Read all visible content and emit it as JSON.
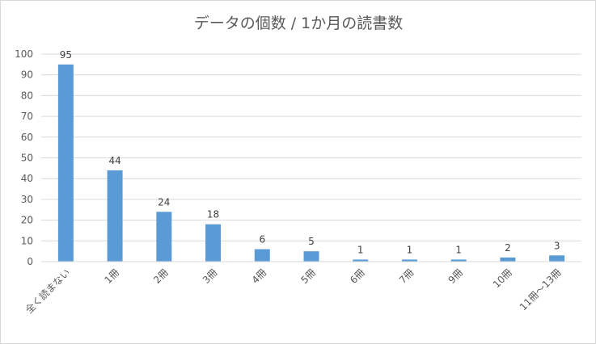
{
  "chart_data": {
    "type": "bar",
    "title": "データの個数 / 1か月の読書数",
    "categories": [
      "全く読まない",
      "1冊",
      "2冊",
      "3冊",
      "4冊",
      "5冊",
      "6冊",
      "7冊",
      "9冊",
      "10冊",
      "11冊～13冊"
    ],
    "series": [
      {
        "values": [
          95,
          44,
          24,
          18,
          6,
          5,
          1,
          1,
          1,
          2,
          3
        ],
        "data_labels": [
          "95",
          "44",
          "24",
          "18",
          "6",
          "5",
          "1",
          "1",
          "1",
          "2",
          "3"
        ]
      }
    ],
    "yticks": [
      "0",
      "10",
      "20",
      "30",
      "40",
      "50",
      "60",
      "70",
      "80",
      "90",
      "100"
    ],
    "ylim": [
      0,
      100
    ],
    "xlabel": "",
    "ylabel": "",
    "grid": true,
    "legend": "none",
    "bar_color": "#5b9bd5",
    "grid_color": "#d9d9d9"
  }
}
